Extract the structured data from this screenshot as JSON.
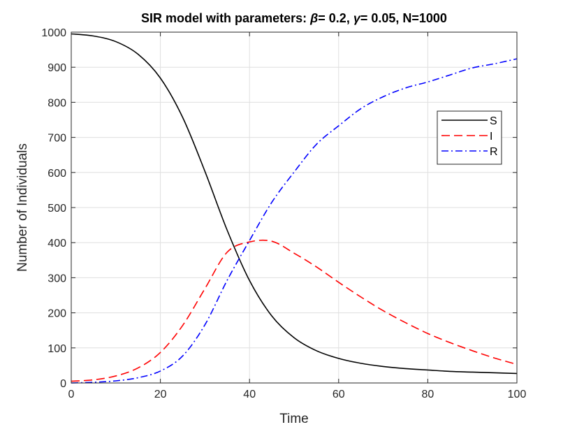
{
  "chart_data": {
    "type": "line",
    "title_parts": [
      {
        "text": "SIR  model  with  parameters:  ",
        "italic": false
      },
      {
        "text": "β",
        "italic": true
      },
      {
        "text": "= 0.2,  ",
        "italic": false
      },
      {
        "text": "γ",
        "italic": true
      },
      {
        "text": "= 0.05,  N=1000",
        "italic": false
      }
    ],
    "xlabel": "Time",
    "ylabel": "Number of Individuals",
    "xlim": [
      0,
      100
    ],
    "ylim": [
      0,
      1000
    ],
    "xticks": [
      0,
      20,
      40,
      60,
      80,
      100
    ],
    "yticks": [
      0,
      100,
      200,
      300,
      400,
      500,
      600,
      700,
      800,
      900,
      1000
    ],
    "grid": true,
    "legend_position": "top-right",
    "x": [
      0,
      5,
      10,
      15,
      20,
      25,
      30,
      35,
      40,
      45,
      50,
      55,
      60,
      65,
      70,
      75,
      80,
      85,
      90,
      95,
      100
    ],
    "series": [
      {
        "name": "S",
        "color": "#000000",
        "dash": "solid",
        "values": [
          995,
          989,
          973,
          937,
          869,
          757,
          603,
          435,
          292,
          191,
          129,
          92,
          70,
          56,
          47,
          41,
          37,
          33,
          31,
          29,
          27
        ]
      },
      {
        "name": "I",
        "color": "#ff0000",
        "dash": "dashed",
        "values": [
          5,
          9,
          20,
          43,
          87,
          164,
          269,
          373,
          402,
          404,
          370,
          331,
          287,
          245,
          206,
          172,
          141,
          115,
          92,
          71,
          53
        ]
      },
      {
        "name": "R",
        "color": "#0000ff",
        "dash": "dashdot",
        "values": [
          0,
          2,
          6,
          15,
          34,
          77,
          166,
          293,
          406,
          515,
          601,
          680,
          733,
          782,
          816,
          841,
          858,
          878,
          898,
          910,
          924
        ]
      }
    ]
  }
}
